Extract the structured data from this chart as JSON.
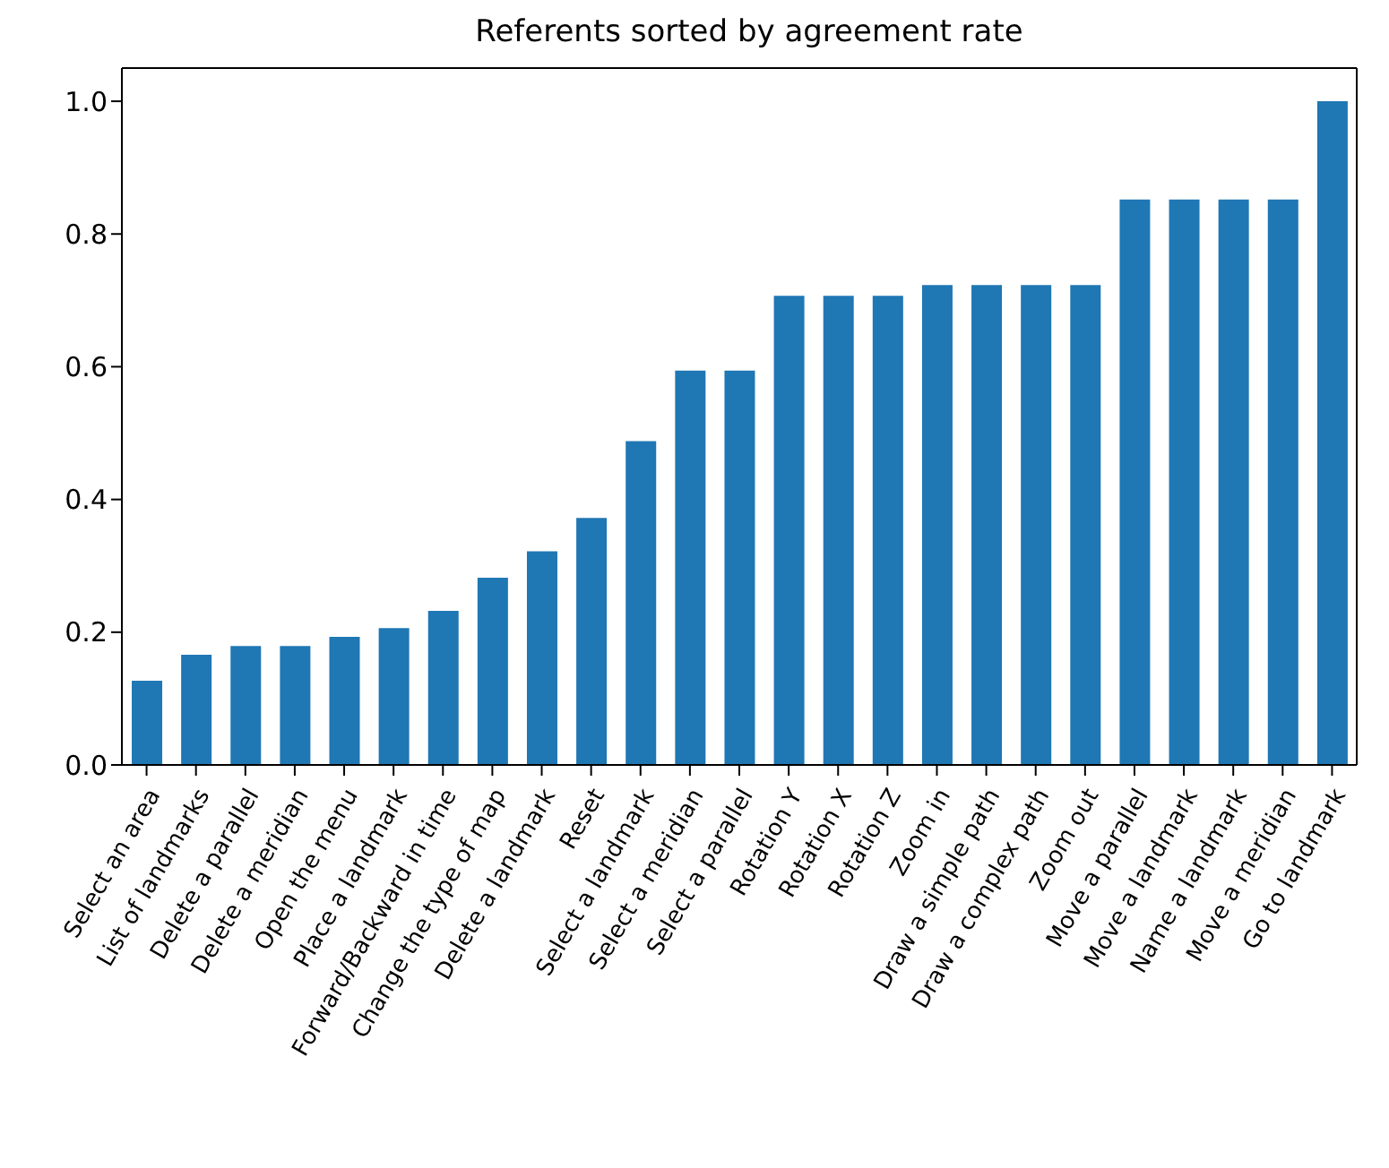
{
  "chart_data": {
    "type": "bar",
    "title": "Referents sorted by agreement rate",
    "categories": [
      "Select an area",
      "List of landmarks",
      "Delete a parallel",
      "Delete a meridian",
      "Open the menu",
      "Place a landmark",
      "Forward/Backward in time",
      "Change the type of map",
      "Delete a landmark",
      "Reset",
      "Select a landmark",
      "Select a meridian",
      "Select a parallel",
      "Rotation Y",
      "Rotation X",
      "Rotation Z",
      "Zoom in",
      "Draw a simple path",
      "Draw a complex path",
      "Zoom out",
      "Move a parallel",
      "Move a landmark",
      "Name a landmark",
      "Move a meridian",
      "Go to landmark"
    ],
    "values": [
      0.127,
      0.166,
      0.179,
      0.179,
      0.193,
      0.206,
      0.232,
      0.282,
      0.322,
      0.372,
      0.488,
      0.594,
      0.594,
      0.707,
      0.707,
      0.707,
      0.723,
      0.723,
      0.723,
      0.723,
      0.852,
      0.852,
      0.852,
      0.852,
      1.0
    ],
    "color": "#1f77b4",
    "ylim": [
      0,
      1.05
    ],
    "yticks": [
      {
        "value": 0,
        "label": "0.0"
      },
      0.2,
      0.4,
      0.6,
      0.8,
      {
        "value": 1,
        "label": "1.0"
      }
    ],
    "grid": false
  }
}
